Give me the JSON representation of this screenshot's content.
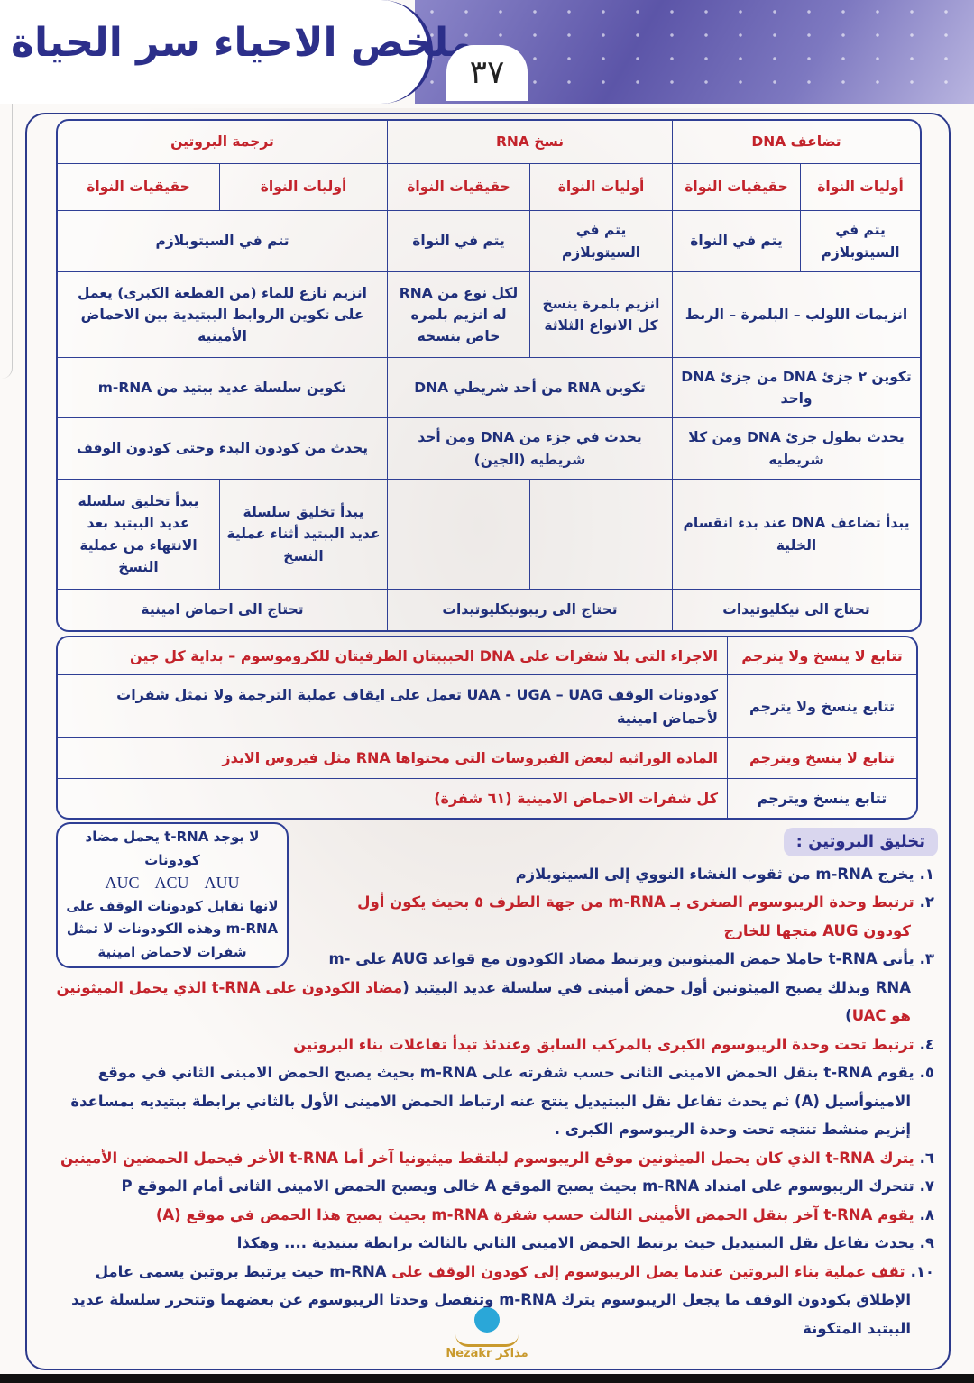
{
  "header": {
    "title": "ملخص الاحياء سر الحياة",
    "page_number": "٣٧"
  },
  "comparison": {
    "groups": [
      "تضاعف DNA",
      "نسخ RNA",
      "ترجمة البروتين"
    ],
    "sub": [
      "أوليات النواة",
      "حقيقيات النواة",
      "أوليات النواة",
      "حقيقيات النواة",
      "أوليات النواة",
      "حقيقيات النواة"
    ],
    "location": [
      "يتم في السيتوبلازم",
      "يتم في النواة",
      "يتم في السيتوبلازم",
      "يتم في النواة",
      "تتم في السيتوبلازم"
    ],
    "enzymes": [
      "انزيمات اللولب – البلمرة – الربط",
      "انزيم بلمرة ينسخ كل الانواع الثلاثة",
      "لكل نوع من RNA له انزيم بلمره خاص بنسخه",
      "انزيم نازع للماء (من القطعة الكبرى) يعمل على تكوين الروابط الببتيدية بين الاحماض الأمينية"
    ],
    "product": [
      "تكوين ٢ جزئ DNA من جزئ DNA واحد",
      "تكوين RNA من أحد شريطي DNA",
      "تكوين سلسلة عديد ببتيد من m-RNA"
    ],
    "extent": [
      "يحدث بطول جزئ DNA ومن كلا شريطيه",
      "يحدث في جزء من DNA ومن أحد شريطيه (الجين)",
      "يحدث من كودون البدء وحتى كودون الوقف"
    ],
    "start": [
      "يبدأ تضاعف DNA عند بدء انقسام الخلية",
      "",
      "",
      "يبدأ تخليق سلسلة عديد الببتيد أثناء عملية النسخ",
      "يبدأ تخليق سلسلة عديد الببتيد بعد الانتهاء من عملية النسخ"
    ],
    "needs": [
      "تحتاج الى نيكليوتيدات",
      "تحتاج الى ريبونيكليوتيدات",
      "تحتاج الى احماض امينية"
    ]
  },
  "sequences": [
    {
      "label": "تتابع لا ينسخ ولا يترجم",
      "text": "الاجزاء التى بلا شفرات على DNA الحبيبتان الطرفيتان للكروموسوم – بداية كل جين",
      "color": "red"
    },
    {
      "label": "تتابع ينسخ ولا يترجم",
      "text": "كودونات الوقف UAA - UGA – UAG تعمل على ايقاف عملية الترجمة ولا تمثل شفرات لأحماض امينية",
      "color": "blue"
    },
    {
      "label": "تتابع لا ينسخ ويترجم",
      "text": "المادة الوراثية لبعض الفيروسات التى محتواها RNA مثل فيروس الايدز",
      "color": "red"
    },
    {
      "label": "تتابع ينسخ ويترجم",
      "text": "كل شفرات الاحماض الامينية (٦١ شفرة)",
      "color": "red"
    }
  ],
  "note_box": {
    "line1": "لا يوجد t-RNA يحمل مضاد كودونات",
    "codons": "AUC – ACU – AUU",
    "line2": "لانها تقابل كودونات الوقف على m-RNA وهذه الكودونات لا تمثل شفرات لاحماض امينية"
  },
  "synthesis": {
    "title": "تخليق البروتين :",
    "steps": [
      {
        "num": "١.",
        "parts": [
          {
            "t": "يخرج m-RNA من ثقوب الغشاء النووي إلى السيتوبلازم",
            "c": "blue"
          }
        ]
      },
      {
        "num": "٢.",
        "parts": [
          {
            "t": "ترتبط وحدة الريبوسوم الصغرى بـ m-RNA من جهة الطرف ٥ بحيث يكون أول كودون AUG متجها للخارج",
            "c": "red"
          }
        ]
      },
      {
        "num": "٣.",
        "parts": [
          {
            "t": "يأتى t-RNA حاملا حمض الميثونين ويرتبط مضاد الكودون مع قواعد AUG على m-RNA وبذلك يصبح الميثونين أول حمض أمينى في سلسلة عديد البيتيد (",
            "c": "blue"
          },
          {
            "t": "مضاد الكودون على t-RNA الذي يحمل الميثونين هو UAC",
            "c": "red"
          },
          {
            "t": ")",
            "c": "blue"
          }
        ]
      },
      {
        "num": "٤.",
        "parts": [
          {
            "t": "ترتبط تحت وحدة الريبوسوم الكبرى بالمركب السابق وعندئذ تبدأ تفاعلات بناء البروتين",
            "c": "red"
          }
        ]
      },
      {
        "num": "٥.",
        "parts": [
          {
            "t": "يقوم t-RNA بنقل الحمض الامينى الثانى حسب شفرته على m-RNA بحيث يصبح الحمض الامينى الثاني في موقع الامينوأسيل (A) ثم يحدث تفاعل نقل الببتيديل ينتج عنه ارتباط الحمض الامينى الأول بالثاني برابطة ببتيديه بمساعدة إنزيم منشط تنتجه تحت وحدة الريبوسوم الكبرى .",
            "c": "blue"
          }
        ]
      },
      {
        "num": "٦.",
        "parts": [
          {
            "t": "يترك t-RNA الذي كان يحمل الميثونين موقع الريبوسوم ليلتقط ميثيونيا آخر أما t-RNA الأخر فيحمل الحمضين الأمينين",
            "c": "red"
          }
        ]
      },
      {
        "num": "٧.",
        "parts": [
          {
            "t": "تتحرك الريبوسوم على امتداد m-RNA بحيث يصبح الموقع A خالى ويصبح الحمض الامينى الثانى أمام الموقع P",
            "c": "blue"
          }
        ]
      },
      {
        "num": "٨.",
        "parts": [
          {
            "t": "يقوم t-RNA آخر بنقل الحمض الأمينى الثالث حسب شفرة m-RNA ",
            "c": "red"
          },
          {
            "t": "بحيث يصبح هذا الحمض في موقع (A)",
            "c": "red"
          }
        ]
      },
      {
        "num": "٩.",
        "parts": [
          {
            "t": "يحدث تفاعل نقل الببتيديل حيث يرتبط الحمض الامينى الثاني بالثالث برابطة ببتيدية .... وهكذا",
            "c": "blue"
          }
        ]
      },
      {
        "num": "١٠.",
        "parts": [
          {
            "t": "تقف عملية بناء البروتين عندما يصل الريبوسوم إلى كودون الوقف على ",
            "c": "red"
          },
          {
            "t": "m-RNA حيث يرتبط بروتين يسمى عامل الإطلاق بكودون الوقف ما يجعل الريبوسوم يترك m-RNA وتنفصل وحدتا الريبوسوم عن بعضهما وتتحرر سلسلة عديد الببتيد المتكونة",
            "c": "blue"
          }
        ]
      }
    ]
  },
  "logo": {
    "text": "Nezakr مذاكر"
  },
  "colors": {
    "red": "#c3232b",
    "blue": "#1f2f7a",
    "frame": "#2f3f95",
    "banner": "#5c55a8"
  }
}
